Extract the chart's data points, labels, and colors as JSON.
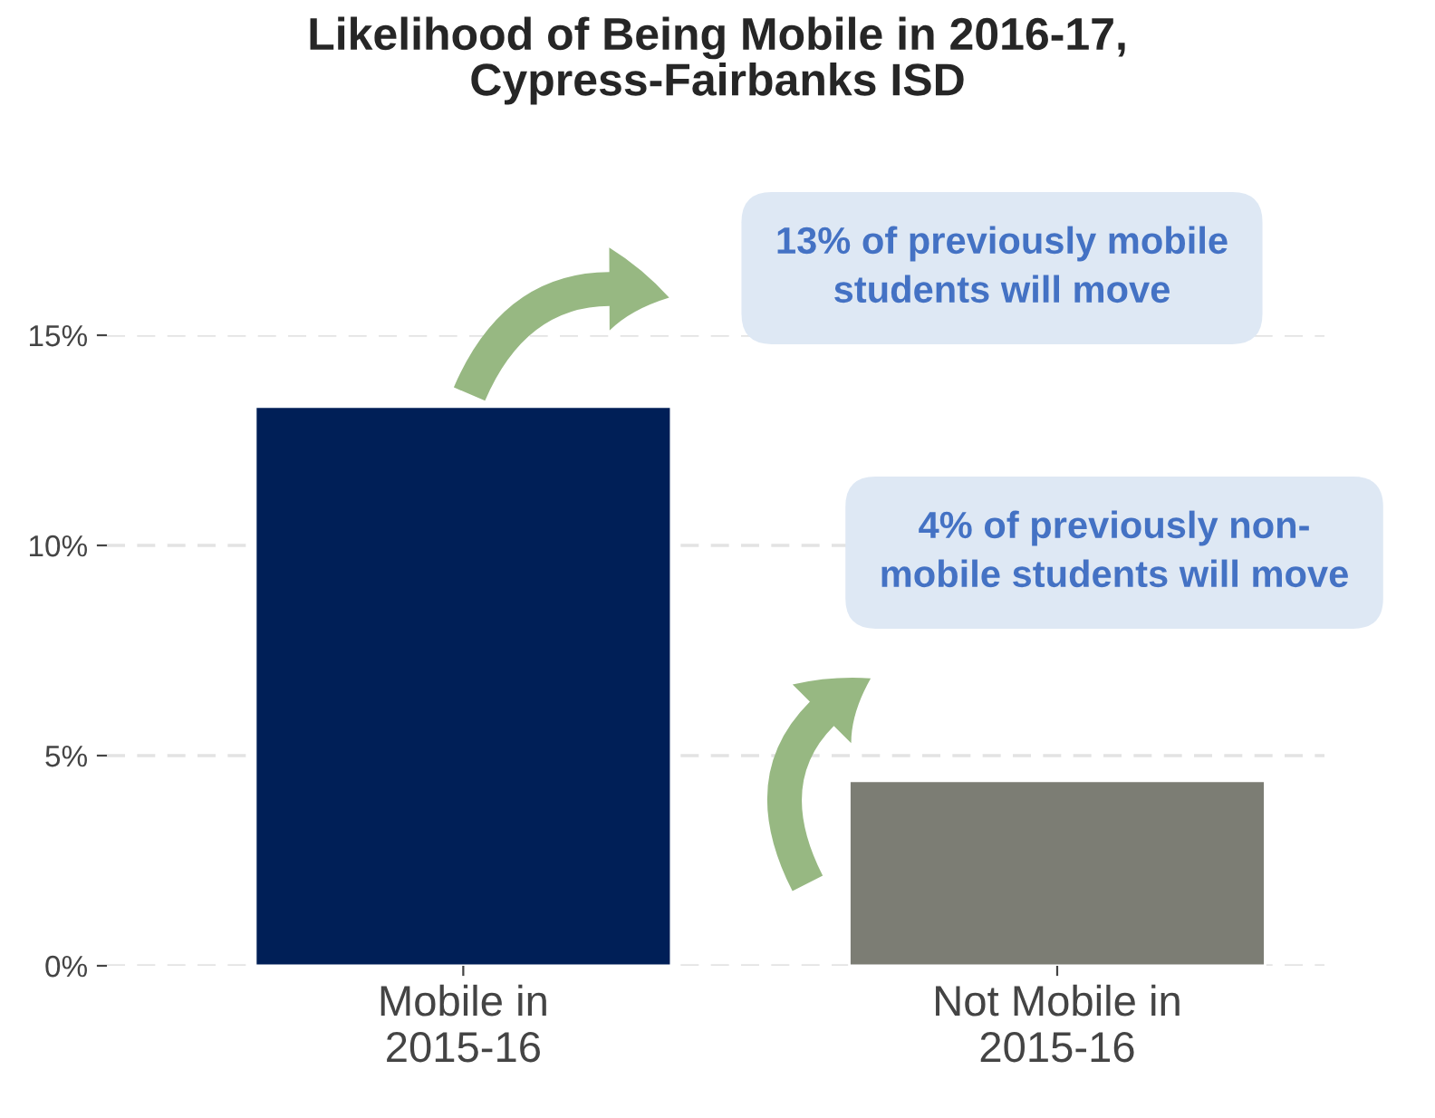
{
  "chart_data": {
    "type": "bar",
    "title": "Likelihood of Being Mobile in 2016-17,\nCypress-Fairbanks ISD",
    "categories": [
      "Mobile in\n2015-16",
      "Not Mobile in\n2015-16"
    ],
    "values": [
      13.3,
      4.4
    ],
    "colors": [
      "#001f57",
      "#7c7d74"
    ],
    "ylim": [
      0,
      15
    ],
    "yticks": [
      {
        "value": 0,
        "label": "0%"
      },
      {
        "value": 5,
        "label": "5%"
      },
      {
        "value": 10,
        "label": "10%"
      },
      {
        "value": 15,
        "label": "15%"
      }
    ],
    "grid": "y",
    "annotations": [
      "13% of previously mobile\nstudents will move",
      "4% of previously non-\nmobile students will move"
    ]
  }
}
